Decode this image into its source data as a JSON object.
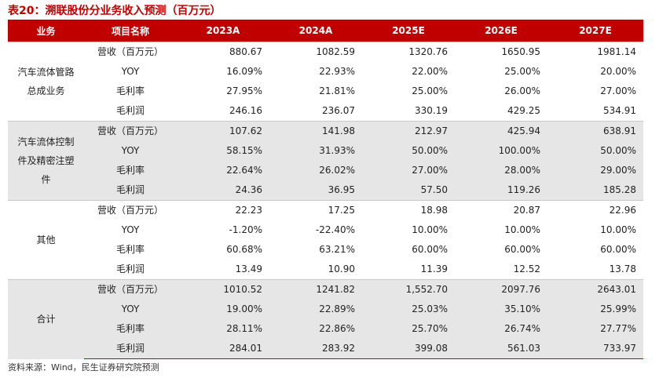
{
  "title": "表20：溯联股份分业务收入预测（百万元）",
  "columns": [
    "业务",
    "项目名称",
    "2023A",
    "2024A",
    "2025E",
    "2026E",
    "2027E"
  ],
  "groups": [
    {
      "name": "汽车流体管路总成业务",
      "rows": [
        {
          "metric": "营收（百万元）",
          "values": [
            "880.67",
            "1082.59",
            "1320.76",
            "1650.95",
            "1981.14"
          ]
        },
        {
          "metric": "YOY",
          "values": [
            "16.09%",
            "22.93%",
            "22.00%",
            "25.00%",
            "20.00%"
          ]
        },
        {
          "metric": "毛利率",
          "values": [
            "27.95%",
            "21.81%",
            "25.00%",
            "26.00%",
            "27.00%"
          ]
        },
        {
          "metric": "毛利润",
          "values": [
            "246.16",
            "236.07",
            "330.19",
            "429.25",
            "534.91"
          ]
        }
      ]
    },
    {
      "name": "汽车流体控制件及精密注塑件",
      "rows": [
        {
          "metric": "营收（百万元）",
          "values": [
            "107.62",
            "141.98",
            "212.97",
            "425.94",
            "638.91"
          ]
        },
        {
          "metric": "YOY",
          "values": [
            "58.15%",
            "31.93%",
            "50.00%",
            "100.00%",
            "50.00%"
          ]
        },
        {
          "metric": "毛利率",
          "values": [
            "22.64%",
            "26.02%",
            "27.00%",
            "28.00%",
            "29.00%"
          ]
        },
        {
          "metric": "毛利润",
          "values": [
            "24.36",
            "36.95",
            "57.50",
            "119.26",
            "185.28"
          ]
        }
      ]
    },
    {
      "name": "其他",
      "rows": [
        {
          "metric": "营收（百万元）",
          "values": [
            "22.23",
            "17.25",
            "18.98",
            "20.87",
            "22.96"
          ]
        },
        {
          "metric": "YOY",
          "values": [
            "-1.20%",
            "-22.40%",
            "10.00%",
            "10.00%",
            "10.00%"
          ]
        },
        {
          "metric": "毛利率",
          "values": [
            "60.68%",
            "63.21%",
            "60.00%",
            "60.00%",
            "60.00%"
          ]
        },
        {
          "metric": "毛利润",
          "values": [
            "13.49",
            "10.90",
            "11.39",
            "12.52",
            "13.78"
          ]
        }
      ]
    },
    {
      "name": "合计",
      "rows": [
        {
          "metric": "营收（百万元）",
          "values": [
            "1010.52",
            "1241.82",
            "1,552.70",
            "2097.76",
            "2643.01"
          ]
        },
        {
          "metric": "YOY",
          "values": [
            "19.00%",
            "22.89%",
            "25.03%",
            "35.10%",
            "25.99%"
          ]
        },
        {
          "metric": "毛利率",
          "values": [
            "28.11%",
            "22.86%",
            "25.70%",
            "26.74%",
            "27.77%"
          ]
        },
        {
          "metric": "毛利润",
          "values": [
            "284.01",
            "283.92",
            "399.08",
            "561.03",
            "733.97"
          ]
        }
      ]
    }
  ],
  "source": "资料来源：Wind，民生证券研究院预测"
}
